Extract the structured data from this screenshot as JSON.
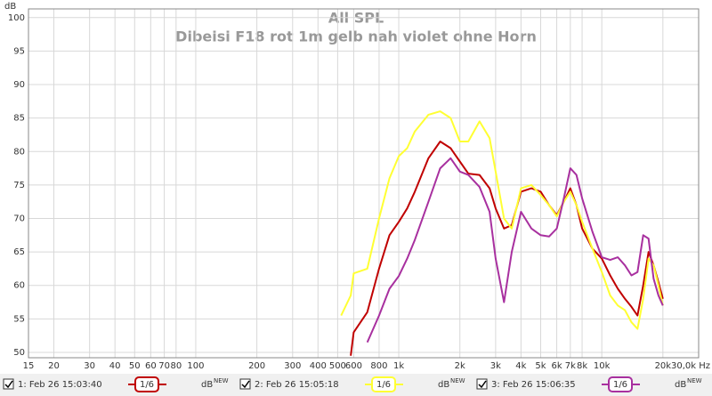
{
  "chart_data": {
    "type": "line",
    "title": "All SPL",
    "subtitle": "Dibeisi F18 rot 1m gelb nah violet ohne Horn",
    "y_label": "dB",
    "log_x": true,
    "grid": true,
    "xlim": [
      15,
      30000
    ],
    "ylim": [
      49.2,
      101.3
    ],
    "xticks": [
      15,
      20,
      30,
      40,
      50,
      60,
      70,
      80,
      100,
      200,
      300,
      400,
      500,
      600,
      800,
      {
        "value": 1000,
        "label": "1k"
      },
      {
        "value": 2000,
        "label": "2k"
      },
      {
        "value": 3000,
        "label": "3k"
      },
      {
        "value": 4000,
        "label": "4k"
      },
      {
        "value": 5000,
        "label": "5k"
      },
      {
        "value": 6000,
        "label": "6k"
      },
      {
        "value": 7000,
        "label": "7k"
      },
      {
        "value": 8000,
        "label": "8k"
      },
      {
        "value": 10000,
        "label": "10k"
      },
      {
        "value": 20000,
        "label": "20k"
      },
      {
        "value": 30000,
        "label": "30,0k Hz"
      }
    ],
    "yticks": [
      50,
      55,
      60,
      65,
      70,
      75,
      80,
      85,
      90,
      95,
      100
    ],
    "x": [
      520,
      580,
      600,
      700,
      800,
      900,
      1000,
      1100,
      1200,
      1400,
      1600,
      1800,
      2000,
      2200,
      2500,
      2800,
      3000,
      3300,
      3600,
      4000,
      4500,
      5000,
      5500,
      6000,
      6500,
      7000,
      7500,
      8000,
      9000,
      10000,
      11000,
      12000,
      13000,
      14000,
      15000,
      16000,
      17000,
      18000,
      19000,
      20000
    ],
    "series": [
      {
        "name": "1: Feb 26 15:03:40",
        "color": "#c00000",
        "smoothing": "1/6",
        "unit": "dB",
        "badge": "NEW",
        "values": [
          null,
          49.5,
          53,
          56,
          62.5,
          67.5,
          69.5,
          71.5,
          74,
          79,
          81.5,
          80.5,
          78.5,
          76.7,
          76.5,
          74.5,
          71.5,
          68.5,
          69,
          74,
          74.5,
          74,
          72,
          70.5,
          72.5,
          74.5,
          72,
          68.5,
          65.5,
          64,
          61.5,
          59.5,
          58,
          56.8,
          55.5,
          60,
          65,
          63,
          60.5,
          58
        ]
      },
      {
        "name": "2: Feb 26 15:05:18",
        "color": "#ffff33",
        "smoothing": "1/6",
        "unit": "dB",
        "badge": "NEW",
        "values": [
          55.5,
          58.5,
          61.8,
          62.5,
          70,
          76,
          79.3,
          80.5,
          83,
          85.5,
          86,
          85,
          81.5,
          81.5,
          84.5,
          82,
          77,
          70,
          68.5,
          74.5,
          75,
          73.5,
          72,
          70.3,
          72.5,
          74,
          72,
          69.5,
          65.5,
          62,
          58.5,
          57,
          56.3,
          54.5,
          53.5,
          58,
          64,
          63,
          60,
          57
        ]
      },
      {
        "name": "3: Feb 26 15:06:35",
        "color": "#a8309f",
        "smoothing": "1/6",
        "unit": "dB",
        "badge": "NEW",
        "values": [
          null,
          null,
          null,
          51.5,
          55.5,
          59.5,
          61.4,
          64,
          66.8,
          72.5,
          77.5,
          79,
          77,
          76.5,
          74.7,
          71,
          64,
          57.5,
          65,
          71,
          68.5,
          67.5,
          67.3,
          68.5,
          73,
          77.5,
          76.5,
          73,
          68,
          64.2,
          63.8,
          64.2,
          63,
          61.5,
          62,
          67.5,
          67,
          61,
          58.5,
          57
        ]
      }
    ]
  }
}
